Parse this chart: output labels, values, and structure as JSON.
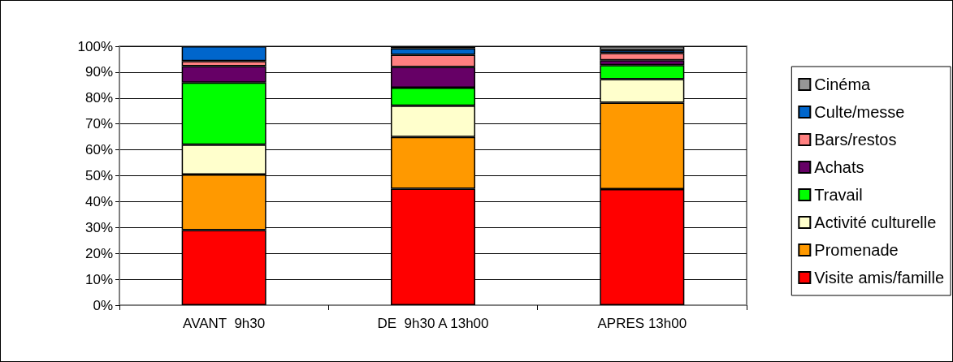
{
  "chart_data": {
    "type": "bar",
    "stacked": true,
    "categories": [
      "AVANT  9h30",
      "DE  9h30 A 13h00",
      "APRES 13h00"
    ],
    "series": [
      {
        "name": "Visite amis/famille",
        "color": "#ff0000",
        "values": [
          29,
          45,
          44.8
        ]
      },
      {
        "name": "Promenade",
        "color": "#ff9900",
        "values": [
          21.5,
          20,
          33.4
        ]
      },
      {
        "name": "Activité culturelle",
        "color": "#ffffcc",
        "values": [
          11.5,
          12,
          9.1
        ]
      },
      {
        "name": "Travail",
        "color": "#00ff00",
        "values": [
          24,
          7,
          5.4
        ]
      },
      {
        "name": "Achats",
        "color": "#660066",
        "values": [
          6.3,
          8,
          1.9
        ]
      },
      {
        "name": "Bars/restos",
        "color": "#ff8080",
        "values": [
          2,
          4.7,
          2.8
        ]
      },
      {
        "name": "Culte/messe",
        "color": "#0066cc",
        "values": [
          5.7,
          2.5,
          1.1
        ]
      },
      {
        "name": "Cinéma",
        "color": "#969696",
        "values": [
          0,
          0.8,
          1.5
        ]
      }
    ],
    "ylim": [
      0,
      100
    ],
    "yticks": [
      {
        "value": 0,
        "label": "0%"
      },
      {
        "value": 10,
        "label": "10%"
      },
      {
        "value": 20,
        "label": "20%"
      },
      {
        "value": 30,
        "label": "30%"
      },
      {
        "value": 40,
        "label": "40%"
      },
      {
        "value": 50,
        "label": "50%"
      },
      {
        "value": 60,
        "label": "60%"
      },
      {
        "value": 70,
        "label": "70%"
      },
      {
        "value": 80,
        "label": "80%"
      },
      {
        "value": 90,
        "label": "90%"
      },
      {
        "value": 100,
        "label": "100%"
      }
    ],
    "grid": "y",
    "legend": "right"
  }
}
